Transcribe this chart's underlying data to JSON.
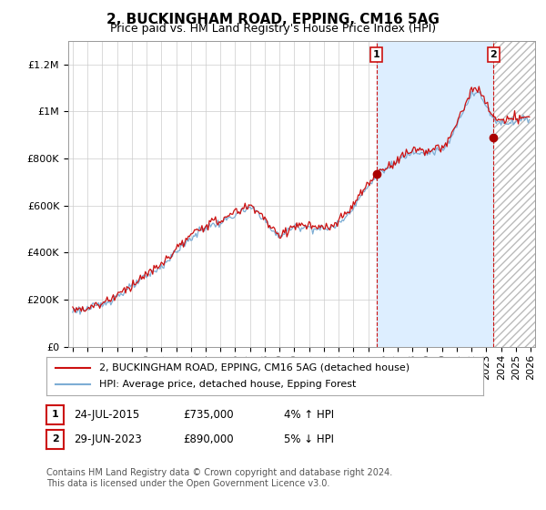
{
  "title": "2, BUCKINGHAM ROAD, EPPING, CM16 5AG",
  "subtitle": "Price paid vs. HM Land Registry's House Price Index (HPI)",
  "ylim": [
    0,
    1300000
  ],
  "yticks": [
    0,
    200000,
    400000,
    600000,
    800000,
    1000000,
    1200000
  ],
  "ytick_labels": [
    "£0",
    "£200K",
    "£400K",
    "£600K",
    "£800K",
    "£1M",
    "£1.2M"
  ],
  "xlim_start": 1994.7,
  "xlim_end": 2026.3,
  "xticks": [
    1995,
    1996,
    1997,
    1998,
    1999,
    2000,
    2001,
    2002,
    2003,
    2004,
    2005,
    2006,
    2007,
    2008,
    2009,
    2010,
    2011,
    2012,
    2013,
    2014,
    2015,
    2016,
    2017,
    2018,
    2019,
    2020,
    2021,
    2022,
    2023,
    2024,
    2025,
    2026
  ],
  "hpi_color": "#7dadd4",
  "price_color": "#cc1111",
  "marker_color": "#aa0000",
  "vline_color": "#cc1111",
  "background_color": "#ffffff",
  "plot_bg_color": "#ffffff",
  "shade_color": "#ddeeff",
  "grid_color": "#cccccc",
  "sale1_x": 2015.56,
  "sale1_y": 735000,
  "sale1_label": "1",
  "sale1_date": "24-JUL-2015",
  "sale1_price": "£735,000",
  "sale1_hpi": "4% ↑ HPI",
  "sale2_x": 2023.49,
  "sale2_y": 890000,
  "sale2_label": "2",
  "sale2_date": "29-JUN-2023",
  "sale2_price": "£890,000",
  "sale2_hpi": "5% ↓ HPI",
  "copyright_text": "Contains HM Land Registry data © Crown copyright and database right 2024.\nThis data is licensed under the Open Government Licence v3.0.",
  "legend_line1": "2, BUCKINGHAM ROAD, EPPING, CM16 5AG (detached house)",
  "legend_line2": "HPI: Average price, detached house, Epping Forest",
  "title_fontsize": 11,
  "subtitle_fontsize": 9,
  "tick_fontsize": 8,
  "legend_fontsize": 8,
  "copyright_fontsize": 7
}
